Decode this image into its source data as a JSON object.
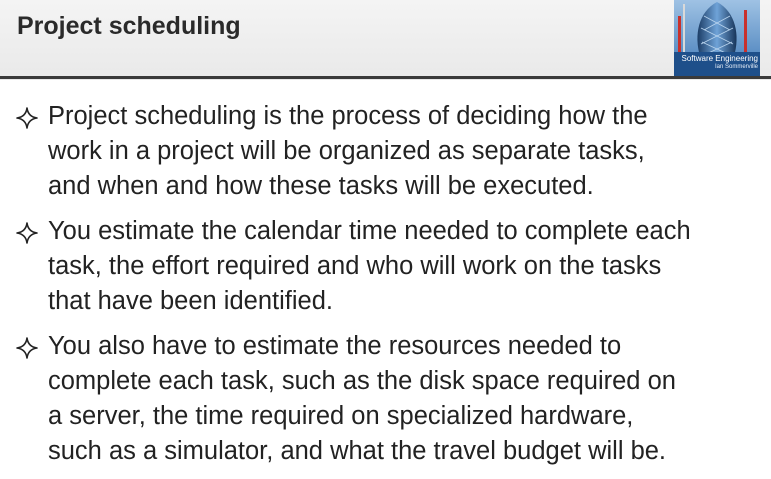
{
  "slide": {
    "title": "Project scheduling",
    "logo": {
      "line1": "Software Engineering",
      "line2": "Ian Sommerville"
    },
    "bullet_icon": "four-point-star-outline-icon",
    "bullets": [
      {
        "lines": [
          "Project scheduling is the process of deciding how the",
          "work in a project will be organized as separate tasks,",
          "and when and how these tasks will be executed."
        ]
      },
      {
        "lines": [
          "You estimate the calendar time needed to complete each",
          "task, the effort required and who will work on the tasks",
          "that have been identified."
        ]
      },
      {
        "lines": [
          "You also have to estimate the resources needed to",
          "complete each task, such as the disk space required on",
          "a server, the time required on specialized hardware,",
          "such as a simulator, and what the travel budget will be."
        ]
      }
    ]
  },
  "colors": {
    "title": "#2a2a2a",
    "divider": "#3a3a3a",
    "body_text": "#222222",
    "header_bg": "#eeeeee"
  }
}
